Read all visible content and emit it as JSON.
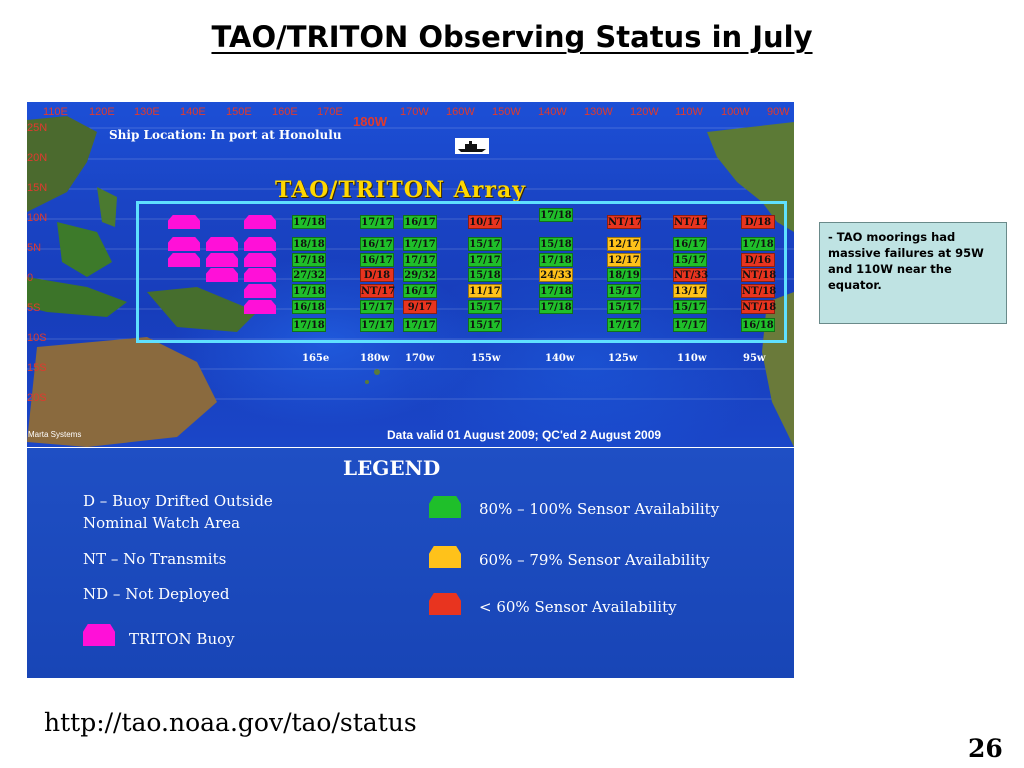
{
  "title": "TAO/TRITON Observing Status in July",
  "map": {
    "lon_labels": [
      "110E",
      "120E",
      "130E",
      "140E",
      "150E",
      "160E",
      "170E",
      "180W",
      "170W",
      "160W",
      "150W",
      "140W",
      "130W",
      "120W",
      "110W",
      "100W",
      "90W"
    ],
    "lat_labels": [
      "25N",
      "20N",
      "15N",
      "10N",
      "5N",
      "0",
      "5S",
      "10S",
      "15S",
      "20S"
    ],
    "ship_location": "Ship Location: In port at Honolulu",
    "array_title": "TAO/TRITON Array",
    "column_labels": [
      "165e",
      "180w",
      "170w",
      "155w",
      "140w",
      "125w",
      "110w",
      "95w"
    ],
    "credit": "Marta Systems",
    "valid_text": "Data valid 01 August 2009; QC'ed 2 August 2009",
    "buoys": [
      {
        "text": "17/18",
        "color": "g"
      },
      {
        "text": "18/18",
        "color": "g"
      },
      {
        "text": "17/18",
        "color": "g"
      },
      {
        "text": "27/32",
        "color": "g"
      },
      {
        "text": "17/18",
        "color": "g"
      },
      {
        "text": "16/18",
        "color": "g"
      },
      {
        "text": "17/18",
        "color": "g"
      },
      {
        "text": "17/17",
        "color": "g"
      },
      {
        "text": "16/17",
        "color": "g"
      },
      {
        "text": "16/17",
        "color": "g"
      },
      {
        "text": "D/18",
        "color": "r"
      },
      {
        "text": "NT/17",
        "color": "r"
      },
      {
        "text": "17/17",
        "color": "g"
      },
      {
        "text": "17/17",
        "color": "g"
      },
      {
        "text": "16/17",
        "color": "g"
      },
      {
        "text": "17/17",
        "color": "g"
      },
      {
        "text": "17/17",
        "color": "g"
      },
      {
        "text": "29/32",
        "color": "g"
      },
      {
        "text": "16/17",
        "color": "g"
      },
      {
        "text": "9/17",
        "color": "r"
      },
      {
        "text": "17/17",
        "color": "g"
      },
      {
        "text": "10/17",
        "color": "r"
      },
      {
        "text": "15/17",
        "color": "g"
      },
      {
        "text": "17/17",
        "color": "g"
      },
      {
        "text": "15/18",
        "color": "g"
      },
      {
        "text": "11/17",
        "color": "y"
      },
      {
        "text": "15/17",
        "color": "g"
      },
      {
        "text": "15/17",
        "color": "g"
      },
      {
        "text": "17/18",
        "color": "g"
      },
      {
        "text": "15/18",
        "color": "g"
      },
      {
        "text": "17/18",
        "color": "g"
      },
      {
        "text": "24/33",
        "color": "y"
      },
      {
        "text": "17/18",
        "color": "g"
      },
      {
        "text": "17/18",
        "color": "g"
      },
      {
        "text": "NT/17",
        "color": "r"
      },
      {
        "text": "12/17",
        "color": "y"
      },
      {
        "text": "12/17",
        "color": "y"
      },
      {
        "text": "18/19",
        "color": "g"
      },
      {
        "text": "15/17",
        "color": "g"
      },
      {
        "text": "15/17",
        "color": "g"
      },
      {
        "text": "17/17",
        "color": "g"
      },
      {
        "text": "NT/17",
        "color": "r"
      },
      {
        "text": "16/17",
        "color": "g"
      },
      {
        "text": "15/17",
        "color": "g"
      },
      {
        "text": "NT/33",
        "color": "r"
      },
      {
        "text": "13/17",
        "color": "y"
      },
      {
        "text": "15/17",
        "color": "g"
      },
      {
        "text": "17/17",
        "color": "g"
      },
      {
        "text": "D/18",
        "color": "r"
      },
      {
        "text": "17/18",
        "color": "g"
      },
      {
        "text": "D/16",
        "color": "r"
      },
      {
        "text": "NT/18",
        "color": "r"
      },
      {
        "text": "NT/18",
        "color": "r"
      },
      {
        "text": "NT/18",
        "color": "r"
      },
      {
        "text": "16/18",
        "color": "g"
      }
    ]
  },
  "legend": {
    "title": "LEGEND",
    "left_items": [
      "D – Buoy Drifted Outside",
      "Nominal Watch Area",
      "NT – No Transmits",
      "ND – Not Deployed",
      "TRITON Buoy"
    ],
    "right_items": [
      {
        "label": "80% – 100% Sensor Availability",
        "color": "#1fbf2a"
      },
      {
        "label": "60% – 79% Sensor Availability",
        "color": "#ffc21a"
      },
      {
        "label": "< 60% Sensor Availability",
        "color": "#e8341f"
      }
    ],
    "triton_color": "#ff10d8"
  },
  "note": "- TAO moorings had massive failures at 95W and 110W near the equator.",
  "url": "http://tao.noaa.gov/tao/status",
  "page_number": "26"
}
